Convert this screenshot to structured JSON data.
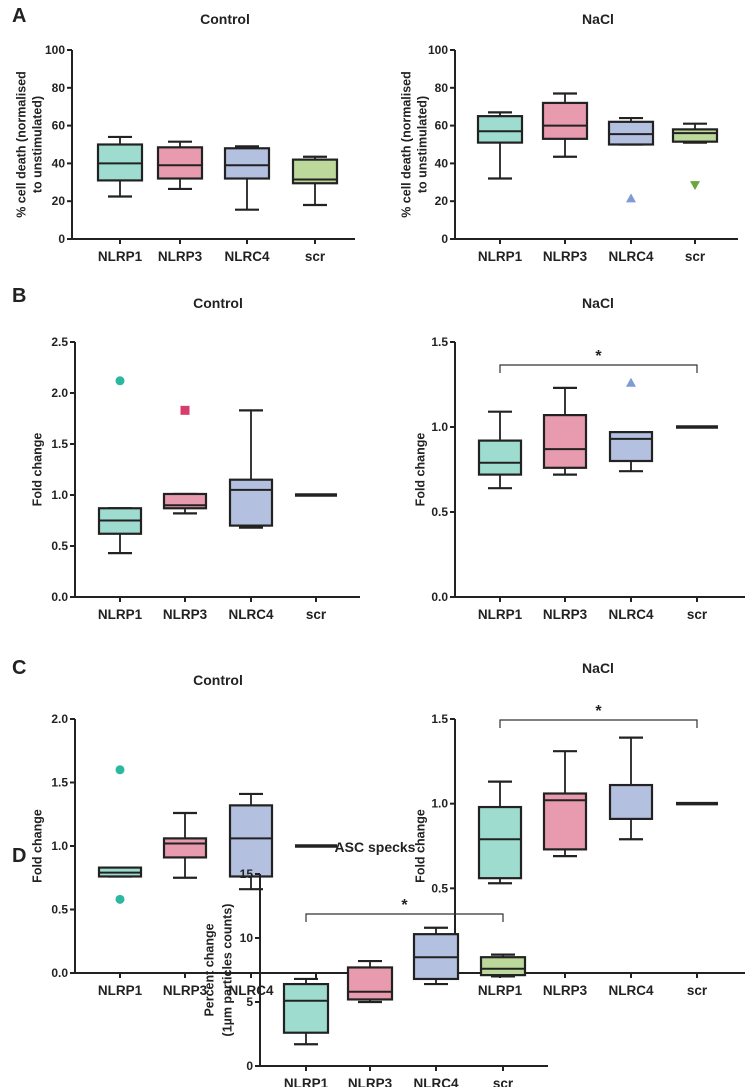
{
  "colors": {
    "fills": [
      "#9fdcd0",
      "#e89aae",
      "#b4c0e0",
      "#bcd89a"
    ],
    "markers": [
      "#2bb7a0",
      "#d63d6b",
      "#7f9ad6",
      "#6aa63a"
    ]
  },
  "chart_data": [
    {
      "id": "A-control",
      "panel_label": "A",
      "type": "box",
      "title": "Control",
      "ylabel": [
        "% cell death (normalised",
        "to unstimulated)"
      ],
      "ylim": [
        0,
        100
      ],
      "yticks": [
        "0",
        "20",
        "40",
        "60",
        "80",
        "100"
      ],
      "ytick_values": [
        0,
        20,
        40,
        60,
        80,
        100
      ],
      "categories": [
        "NLRP1",
        "NLRP3",
        "NLRC4",
        "scr"
      ],
      "boxes": [
        {
          "min": 22.5,
          "q1": 31,
          "median": 40,
          "q3": 50,
          "max": 54,
          "outliers": []
        },
        {
          "min": 26.5,
          "q1": 32,
          "median": 39,
          "q3": 48.5,
          "max": 51.5,
          "outliers": []
        },
        {
          "min": 15.5,
          "q1": 32,
          "median": 39,
          "q3": 48,
          "max": 49,
          "outliers": []
        },
        {
          "min": 18,
          "q1": 29.5,
          "median": 31.5,
          "q3": 42,
          "max": 43.5,
          "outliers": []
        }
      ]
    },
    {
      "id": "A-nacl",
      "panel_label": "",
      "type": "box",
      "title": "NaCl",
      "ylabel": [
        "% cell death (normalised",
        "to unstimulated)"
      ],
      "ylim": [
        0,
        100
      ],
      "yticks": [
        "0",
        "20",
        "40",
        "60",
        "80",
        "100"
      ],
      "ytick_values": [
        0,
        20,
        40,
        60,
        80,
        100
      ],
      "categories": [
        "NLRP1",
        "NLRP3",
        "NLRC4",
        "scr"
      ],
      "boxes": [
        {
          "min": 32,
          "q1": 51,
          "median": 57,
          "q3": 65,
          "max": 67,
          "outliers": []
        },
        {
          "min": 43.5,
          "q1": 53,
          "median": 60,
          "q3": 72,
          "max": 77,
          "outliers": []
        },
        {
          "min": 50,
          "q1": 50,
          "median": 55.5,
          "q3": 62,
          "max": 64,
          "outliers": [
            {
              "value": 21.5,
              "marker": "triangle-up"
            }
          ]
        },
        {
          "min": 51,
          "q1": 51.5,
          "median": 56,
          "q3": 58,
          "max": 61,
          "outliers": [
            {
              "value": 28.5,
              "marker": "triangle-down"
            }
          ]
        }
      ]
    },
    {
      "id": "B-control",
      "panel_label": "B",
      "type": "box",
      "title": "Control",
      "ylabel": [
        "Fold change"
      ],
      "ylim": [
        0,
        2.5
      ],
      "yticks": [
        "0.0",
        "0.5",
        "1.0",
        "1.5",
        "2.0",
        "2.5"
      ],
      "ytick_values": [
        0,
        0.5,
        1,
        1.5,
        2,
        2.5
      ],
      "categories": [
        "NLRP1",
        "NLRP3",
        "NLRC4",
        "scr"
      ],
      "boxes": [
        {
          "min": 0.43,
          "q1": 0.62,
          "median": 0.75,
          "q3": 0.87,
          "max": 0.87,
          "outliers": [
            {
              "value": 2.12,
              "marker": "circle"
            }
          ]
        },
        {
          "min": 0.82,
          "q1": 0.87,
          "median": 0.9,
          "q3": 1.01,
          "max": 1.01,
          "outliers": [
            {
              "value": 1.83,
              "marker": "square"
            }
          ]
        },
        {
          "min": 0.68,
          "q1": 0.7,
          "median": 1.05,
          "q3": 1.15,
          "max": 1.83,
          "outliers": []
        },
        {
          "min": 1.0,
          "q1": 1.0,
          "median": 1.0,
          "q3": 1.0,
          "max": 1.0,
          "outliers": []
        }
      ]
    },
    {
      "id": "B-nacl",
      "panel_label": "",
      "type": "box",
      "title": "NaCl",
      "ylabel": [
        "Fold change"
      ],
      "ylim": [
        0,
        1.5
      ],
      "yticks": [
        "0.0",
        "0.5",
        "1.0",
        "1.5"
      ],
      "ytick_values": [
        0,
        0.5,
        1,
        1.5
      ],
      "categories": [
        "NLRP1",
        "NLRP3",
        "NLRC4",
        "scr"
      ],
      "significance": {
        "from": "NLRP1",
        "to": "scr",
        "label": "*"
      },
      "boxes": [
        {
          "min": 0.64,
          "q1": 0.72,
          "median": 0.79,
          "q3": 0.92,
          "max": 1.09,
          "outliers": []
        },
        {
          "min": 0.72,
          "q1": 0.76,
          "median": 0.87,
          "q3": 1.07,
          "max": 1.23,
          "outliers": []
        },
        {
          "min": 0.74,
          "q1": 0.8,
          "median": 0.93,
          "q3": 0.97,
          "max": 0.97,
          "outliers": [
            {
              "value": 1.26,
              "marker": "triangle-up"
            }
          ]
        },
        {
          "min": 1.0,
          "q1": 1.0,
          "median": 1.0,
          "q3": 1.0,
          "max": 1.0,
          "outliers": []
        }
      ]
    },
    {
      "id": "C-control",
      "panel_label": "C",
      "type": "box",
      "title": "Control",
      "ylabel": [
        "Fold change"
      ],
      "ylim": [
        0,
        2.0
      ],
      "yticks": [
        "0.0",
        "0.5",
        "1.0",
        "1.5",
        "2.0"
      ],
      "ytick_values": [
        0,
        0.5,
        1,
        1.5,
        2
      ],
      "categories": [
        "NLRP1",
        "NLRP3",
        "NLRC4",
        "scr"
      ],
      "boxes": [
        {
          "min": 0.76,
          "q1": 0.76,
          "median": 0.79,
          "q3": 0.83,
          "max": 0.83,
          "outliers": [
            {
              "value": 1.6,
              "marker": "circle"
            },
            {
              "value": 0.58,
              "marker": "circle"
            }
          ]
        },
        {
          "min": 0.75,
          "q1": 0.91,
          "median": 1.02,
          "q3": 1.06,
          "max": 1.26,
          "outliers": []
        },
        {
          "min": 0.66,
          "q1": 0.76,
          "median": 1.06,
          "q3": 1.32,
          "max": 1.41,
          "outliers": []
        },
        {
          "min": 1.0,
          "q1": 1.0,
          "median": 1.0,
          "q3": 1.0,
          "max": 1.0,
          "outliers": []
        }
      ]
    },
    {
      "id": "C-nacl",
      "panel_label": "",
      "type": "box",
      "title": "NaCl",
      "ylabel": [
        "Fold change"
      ],
      "ylim": [
        0,
        1.5
      ],
      "yticks": [
        "0.0",
        "0.5",
        "1.0",
        "1.5"
      ],
      "ytick_values": [
        0,
        0.5,
        1,
        1.5
      ],
      "categories": [
        "NLRP1",
        "NLRP3",
        "NLRC4",
        "scr"
      ],
      "significance": {
        "from": "NLRP1",
        "to": "scr",
        "label": "*"
      },
      "boxes": [
        {
          "min": 0.53,
          "q1": 0.56,
          "median": 0.79,
          "q3": 0.98,
          "max": 1.13,
          "outliers": []
        },
        {
          "min": 0.69,
          "q1": 0.73,
          "median": 1.02,
          "q3": 1.06,
          "max": 1.31,
          "outliers": []
        },
        {
          "min": 0.79,
          "q1": 0.91,
          "median": 1.11,
          "q3": 1.11,
          "max": 1.39,
          "outliers": []
        },
        {
          "min": 1.0,
          "q1": 1.0,
          "median": 1.0,
          "q3": 1.0,
          "max": 1.0,
          "outliers": []
        }
      ]
    },
    {
      "id": "D-asc",
      "panel_label": "D",
      "type": "box",
      "title": "ASC specks",
      "ylabel": [
        "Percent change",
        "(1µm particles counts)"
      ],
      "ylim": [
        0,
        15
      ],
      "yticks": [
        "0",
        "5",
        "10",
        "15"
      ],
      "ytick_values": [
        0,
        5,
        10,
        15
      ],
      "categories": [
        "NLRP1",
        "NLRP3",
        "NLRC4",
        "scr"
      ],
      "significance": {
        "from": "NLRP1",
        "to": "scr",
        "label": "*"
      },
      "boxes": [
        {
          "min": 1.7,
          "q1": 2.6,
          "median": 5.1,
          "q3": 6.4,
          "max": 6.8,
          "outliers": []
        },
        {
          "min": 5.0,
          "q1": 5.2,
          "median": 5.8,
          "q3": 7.7,
          "max": 8.2,
          "outliers": []
        },
        {
          "min": 6.4,
          "q1": 6.8,
          "median": 8.5,
          "q3": 10.3,
          "max": 10.8,
          "outliers": []
        },
        {
          "min": 7.0,
          "q1": 7.1,
          "median": 7.6,
          "q3": 8.5,
          "max": 8.7,
          "outliers": []
        }
      ]
    }
  ]
}
